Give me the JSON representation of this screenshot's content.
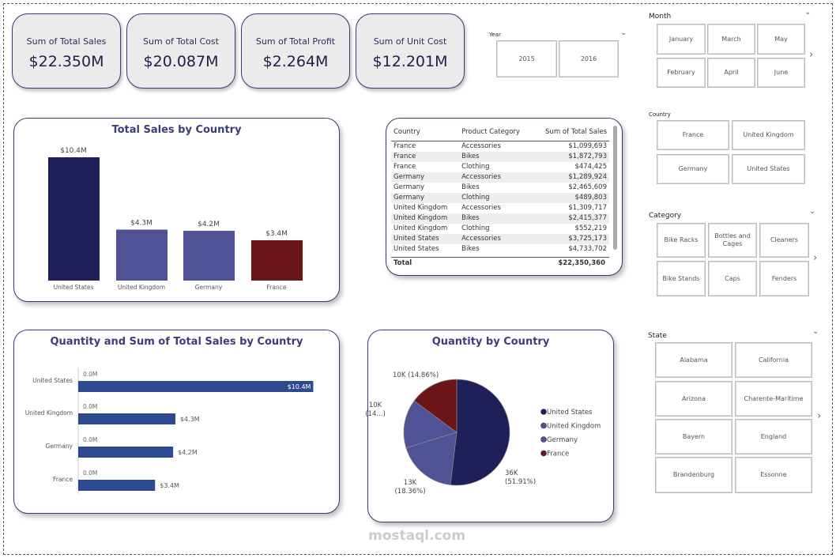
{
  "kpis": [
    {
      "label": "Sum of Total Sales",
      "value": "$22.350M"
    },
    {
      "label": "Sum of Total Cost",
      "value": "$20.087M"
    },
    {
      "label": "Sum of Total Profit",
      "value": "$2.264M"
    },
    {
      "label": "Sum of Unit Cost",
      "value": "$12.201M"
    }
  ],
  "slicers": {
    "year": {
      "title": "Year",
      "items": [
        "2015",
        "2016"
      ]
    },
    "month": {
      "title": "Month",
      "items": [
        "January",
        "March",
        "May",
        "February",
        "April",
        "June"
      ]
    },
    "country": {
      "title": "Country",
      "items": [
        "France",
        "United Kingdom",
        "Germany",
        "United States"
      ]
    },
    "category": {
      "title": "Category",
      "items": [
        "Bike Racks",
        "Bottles and Cages",
        "Cleaners",
        "Bike Stands",
        "Caps",
        "Fenders"
      ]
    },
    "state": {
      "title": "State",
      "items": [
        "Alabama",
        "California",
        "Arizona",
        "Charente-Maritime",
        "Bayern",
        "England",
        "Brandenburg",
        "Essonne"
      ]
    }
  },
  "table": {
    "headers": [
      "Country",
      "Product Category",
      "Sum of Total Sales"
    ],
    "rows": [
      [
        "France",
        "Accessories",
        "$1,099,693"
      ],
      [
        "France",
        "Bikes",
        "$1,872,793"
      ],
      [
        "France",
        "Clothing",
        "$474,425"
      ],
      [
        "Germany",
        "Accessories",
        "$1,289,924"
      ],
      [
        "Germany",
        "Bikes",
        "$2,465,609"
      ],
      [
        "Germany",
        "Clothing",
        "$489,803"
      ],
      [
        "United Kingdom",
        "Accessories",
        "$1,309,717"
      ],
      [
        "United Kingdom",
        "Bikes",
        "$2,415,377"
      ],
      [
        "United Kingdom",
        "Clothing",
        "$552,219"
      ],
      [
        "United States",
        "Accessories",
        "$3,725,173"
      ],
      [
        "United States",
        "Bikes",
        "$4,733,702"
      ]
    ],
    "total_label": "Total",
    "total_value": "$22,350,360"
  },
  "chart_data": [
    {
      "type": "bar",
      "title": "Total Sales by Country",
      "categories": [
        "United States",
        "United Kingdom",
        "Germany",
        "France"
      ],
      "values": [
        10.4,
        4.3,
        4.2,
        3.4
      ],
      "data_labels": [
        "$10.4M",
        "$4.3M",
        "$4.2M",
        "$3.4M"
      ],
      "colors": [
        "#1f1f5a",
        "#4f5396",
        "#4f5396",
        "#6b1518"
      ]
    },
    {
      "type": "bar",
      "orientation": "horizontal",
      "title": "Quantity and Sum of Total Sales by Country",
      "categories": [
        "United States",
        "United Kingdom",
        "Germany",
        "France"
      ],
      "series": [
        {
          "values": [
            0.0,
            0.0,
            0.0,
            0.0
          ],
          "data_labels": [
            "0.0M",
            "0.0M",
            "0.0M",
            "0.0M"
          ]
        },
        {
          "values": [
            10.4,
            4.3,
            4.2,
            3.4
          ],
          "data_labels": [
            "$10.4M",
            "$4.3M",
            "$4.2M",
            "$3.4M"
          ]
        }
      ],
      "color": "#2d4a90"
    },
    {
      "type": "pie",
      "title": "Quantity by Country",
      "categories": [
        "United States",
        "United Kingdom",
        "Germany",
        "France"
      ],
      "values": [
        51.91,
        18.36,
        14.87,
        14.86
      ],
      "data_labels": [
        "36K\n(51.91%)",
        "13K\n(18.36%)",
        "10K\n(14...)",
        "10K (14.86%)"
      ],
      "colors": [
        "#1f1f5a",
        "#4f5396",
        "#4f5396",
        "#6b1518"
      ],
      "legend": "right"
    }
  ],
  "watermark": "mostaql.com"
}
